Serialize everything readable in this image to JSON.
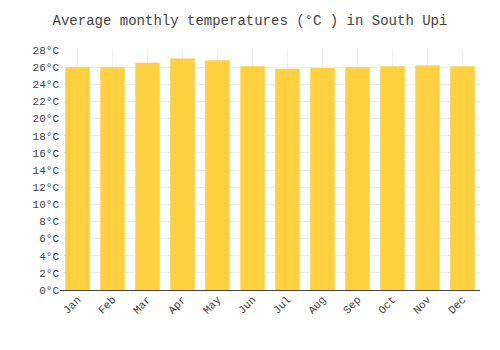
{
  "chart_data": {
    "type": "bar",
    "title": "Average monthly temperatures (°C ) in South Upi",
    "categories": [
      "Jan",
      "Feb",
      "Mar",
      "Apr",
      "May",
      "Jun",
      "Jul",
      "Aug",
      "Sep",
      "Oct",
      "Nov",
      "Dec"
    ],
    "values": [
      26.0,
      26.0,
      26.5,
      27.0,
      26.8,
      26.1,
      25.8,
      25.9,
      26.0,
      26.1,
      26.2,
      26.1
    ],
    "color": "#FFD040",
    "ylim": [
      0,
      28
    ],
    "yticks": [
      {
        "value": 0,
        "label": "0°C"
      },
      {
        "value": 2,
        "label": "2°C"
      },
      {
        "value": 4,
        "label": "4°C"
      },
      {
        "value": 6,
        "label": "6°C"
      },
      {
        "value": 8,
        "label": "8°C"
      },
      {
        "value": 10,
        "label": "10°C"
      },
      {
        "value": 12,
        "label": "12°C"
      },
      {
        "value": 14,
        "label": "14°C"
      },
      {
        "value": 16,
        "label": "16°C"
      },
      {
        "value": 18,
        "label": "18°C"
      },
      {
        "value": 20,
        "label": "20°C"
      },
      {
        "value": 22,
        "label": "22°C"
      },
      {
        "value": 24,
        "label": "24°C"
      },
      {
        "value": 26,
        "label": "26°C"
      },
      {
        "value": 28,
        "label": "28°C"
      }
    ],
    "grid": true
  }
}
